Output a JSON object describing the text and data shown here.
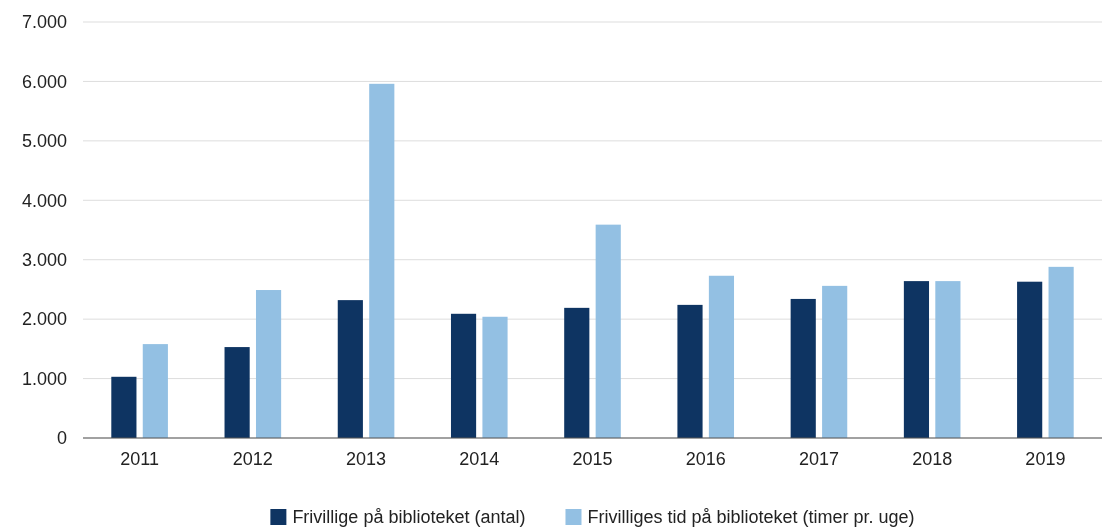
{
  "chart_data": {
    "type": "bar",
    "categories": [
      "2011",
      "2012",
      "2013",
      "2014",
      "2015",
      "2016",
      "2017",
      "2018",
      "2019"
    ],
    "series": [
      {
        "name": "Frivillige på biblioteket (antal)",
        "color": "#0e3462",
        "values": [
          1030,
          1530,
          2320,
          2090,
          2190,
          2240,
          2340,
          2640,
          2630
        ]
      },
      {
        "name": "Frivilliges tid på biblioteket (timer pr. uge)",
        "color": "#93c0e3",
        "values": [
          1580,
          2490,
          5960,
          2040,
          3590,
          2730,
          2560,
          2640,
          2880
        ]
      }
    ],
    "ylim": [
      0,
      7000
    ],
    "yticks": [
      0,
      {
        "value": 1000,
        "label": "1.000"
      },
      {
        "value": 2000,
        "label": "2.000"
      },
      {
        "value": 3000,
        "label": "3.000"
      },
      {
        "value": 4000,
        "label": "4.000"
      },
      {
        "value": 5000,
        "label": "5.000"
      },
      {
        "value": 6000,
        "label": "6.000"
      },
      {
        "value": 7000,
        "label": "7.000"
      }
    ],
    "grid": "y",
    "legend": "bottom"
  }
}
